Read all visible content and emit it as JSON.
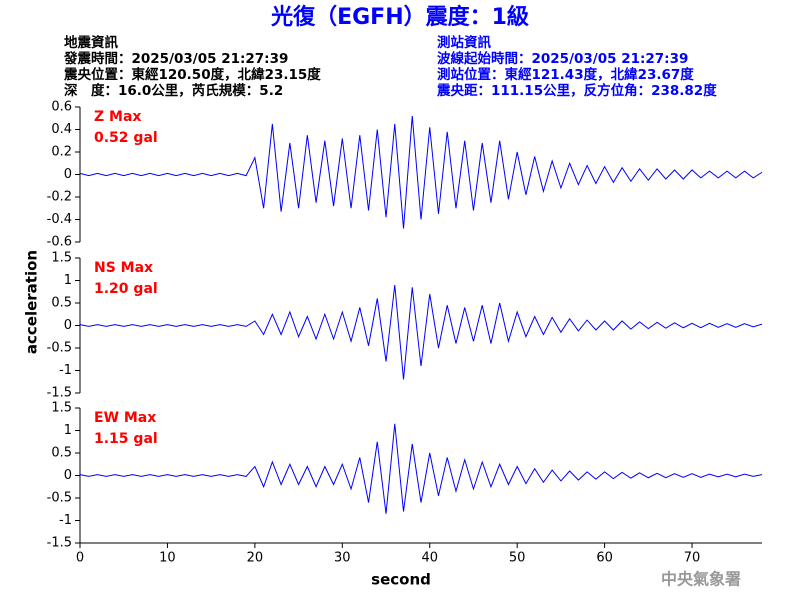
{
  "title": "光復（EGFH）震度：1級",
  "left_info": [
    "地震資訊",
    "發震時間：2025/03/05 21:27:39",
    "震央位置：東經120.50度，北緯23.15度",
    "深　度：16.0公里，芮氏規模：5.2"
  ],
  "right_info": [
    "測站資訊",
    "波線起始時間：2025/03/05 21:27:39",
    "測站位置：東經121.43度，北緯23.67度",
    "震央距：111.15公里，反方位角：238.82度"
  ],
  "y_label": "acceleration",
  "x_label": "second",
  "footer": "中央氣象署",
  "chart_data": [
    {
      "type": "line",
      "color": "#0000ff",
      "label_color": "#ff0000",
      "annotations": [
        "Z Max",
        "0.52 gal"
      ],
      "xlim": [
        0,
        78
      ],
      "ylim": [
        -0.6,
        0.6
      ],
      "yticks": [
        0.6,
        0.4,
        0.2,
        0,
        -0.2,
        -0.4,
        -0.6
      ],
      "x": [
        0,
        1,
        2,
        3,
        4,
        5,
        6,
        7,
        8,
        9,
        10,
        11,
        12,
        13,
        14,
        15,
        16,
        17,
        18,
        19,
        20,
        21,
        22,
        23,
        24,
        25,
        26,
        27,
        28,
        29,
        30,
        31,
        32,
        33,
        34,
        35,
        36,
        37,
        38,
        39,
        40,
        41,
        42,
        43,
        44,
        45,
        46,
        47,
        48,
        49,
        50,
        51,
        52,
        53,
        54,
        55,
        56,
        57,
        58,
        59,
        60,
        61,
        62,
        63,
        64,
        65,
        66,
        67,
        68,
        69,
        70,
        71,
        72,
        73,
        74,
        75,
        76,
        77,
        78
      ],
      "values": [
        0.01,
        -0.01,
        0.01,
        -0.01,
        0.01,
        -0.01,
        0.01,
        -0.01,
        0.01,
        -0.01,
        0.01,
        -0.01,
        0.01,
        -0.01,
        0.01,
        -0.01,
        0.01,
        -0.01,
        0.01,
        -0.01,
        0.15,
        -0.3,
        0.45,
        -0.33,
        0.28,
        -0.3,
        0.35,
        -0.25,
        0.3,
        -0.28,
        0.32,
        -0.3,
        0.35,
        -0.32,
        0.4,
        -0.38,
        0.45,
        -0.48,
        0.52,
        -0.4,
        0.42,
        -0.35,
        0.38,
        -0.3,
        0.3,
        -0.32,
        0.28,
        -0.25,
        0.3,
        -0.22,
        0.2,
        -0.18,
        0.16,
        -0.15,
        0.12,
        -0.12,
        0.1,
        -0.09,
        0.08,
        -0.08,
        0.07,
        -0.07,
        0.06,
        -0.06,
        0.05,
        -0.05,
        0.05,
        -0.04,
        0.04,
        -0.04,
        0.04,
        -0.03,
        0.03,
        -0.03,
        0.03,
        -0.03,
        0.03,
        -0.03,
        0.02
      ]
    },
    {
      "type": "line",
      "color": "#0000ff",
      "label_color": "#ff0000",
      "annotations": [
        "NS Max",
        "1.20 gal"
      ],
      "xlim": [
        0,
        78
      ],
      "ylim": [
        -1.5,
        1.5
      ],
      "yticks": [
        1.5,
        1,
        0.5,
        0,
        -0.5,
        -1,
        -1.5
      ],
      "x": [
        0,
        1,
        2,
        3,
        4,
        5,
        6,
        7,
        8,
        9,
        10,
        11,
        12,
        13,
        14,
        15,
        16,
        17,
        18,
        19,
        20,
        21,
        22,
        23,
        24,
        25,
        26,
        27,
        28,
        29,
        30,
        31,
        32,
        33,
        34,
        35,
        36,
        37,
        38,
        39,
        40,
        41,
        42,
        43,
        44,
        45,
        46,
        47,
        48,
        49,
        50,
        51,
        52,
        53,
        54,
        55,
        56,
        57,
        58,
        59,
        60,
        61,
        62,
        63,
        64,
        65,
        66,
        67,
        68,
        69,
        70,
        71,
        72,
        73,
        74,
        75,
        76,
        77,
        78
      ],
      "values": [
        0.02,
        -0.02,
        0.02,
        -0.02,
        0.02,
        -0.02,
        0.02,
        -0.02,
        0.02,
        -0.02,
        0.02,
        -0.02,
        0.02,
        -0.02,
        0.02,
        -0.02,
        0.02,
        -0.02,
        0.02,
        -0.02,
        0.1,
        -0.2,
        0.25,
        -0.2,
        0.3,
        -0.25,
        0.2,
        -0.3,
        0.25,
        -0.3,
        0.3,
        -0.35,
        0.4,
        -0.45,
        0.6,
        -0.8,
        0.9,
        -1.2,
        0.85,
        -0.9,
        0.7,
        -0.5,
        0.45,
        -0.4,
        0.4,
        -0.35,
        0.45,
        -0.4,
        0.5,
        -0.35,
        0.3,
        -0.25,
        0.2,
        -0.2,
        0.18,
        -0.15,
        0.15,
        -0.12,
        0.12,
        -0.1,
        0.1,
        -0.1,
        0.1,
        -0.08,
        0.08,
        -0.07,
        0.07,
        -0.06,
        0.06,
        -0.05,
        0.05,
        -0.05,
        0.05,
        -0.04,
        0.04,
        -0.04,
        0.04,
        -0.03,
        0.03
      ]
    },
    {
      "type": "line",
      "color": "#0000ff",
      "label_color": "#ff0000",
      "annotations": [
        "EW Max",
        "1.15 gal"
      ],
      "xlim": [
        0,
        78
      ],
      "ylim": [
        -1.5,
        1.5
      ],
      "yticks": [
        1.5,
        1,
        0.5,
        0,
        -0.5,
        -1,
        -1.5
      ],
      "xticks": [
        0,
        10,
        20,
        30,
        40,
        50,
        60,
        70
      ],
      "x": [
        0,
        1,
        2,
        3,
        4,
        5,
        6,
        7,
        8,
        9,
        10,
        11,
        12,
        13,
        14,
        15,
        16,
        17,
        18,
        19,
        20,
        21,
        22,
        23,
        24,
        25,
        26,
        27,
        28,
        29,
        30,
        31,
        32,
        33,
        34,
        35,
        36,
        37,
        38,
        39,
        40,
        41,
        42,
        43,
        44,
        45,
        46,
        47,
        48,
        49,
        50,
        51,
        52,
        53,
        54,
        55,
        56,
        57,
        58,
        59,
        60,
        61,
        62,
        63,
        64,
        65,
        66,
        67,
        68,
        69,
        70,
        71,
        72,
        73,
        74,
        75,
        76,
        77,
        78
      ],
      "values": [
        0.02,
        -0.02,
        0.02,
        -0.02,
        0.02,
        -0.02,
        0.02,
        -0.02,
        0.02,
        -0.02,
        0.02,
        -0.02,
        0.02,
        -0.02,
        0.02,
        -0.02,
        0.02,
        -0.02,
        0.02,
        -0.02,
        0.2,
        -0.25,
        0.3,
        -0.2,
        0.25,
        -0.2,
        0.2,
        -0.25,
        0.2,
        -0.2,
        0.25,
        -0.3,
        0.4,
        -0.6,
        0.75,
        -0.85,
        1.15,
        -0.8,
        0.7,
        -0.6,
        0.5,
        -0.45,
        0.4,
        -0.35,
        0.35,
        -0.3,
        0.3,
        -0.25,
        0.25,
        -0.2,
        0.2,
        -0.18,
        0.15,
        -0.15,
        0.12,
        -0.12,
        0.1,
        -0.1,
        0.08,
        -0.08,
        0.08,
        -0.07,
        0.07,
        -0.06,
        0.06,
        -0.05,
        0.05,
        -0.05,
        0.04,
        -0.04,
        0.04,
        -0.04,
        0.03,
        -0.03,
        0.03,
        -0.03,
        0.03,
        -0.02,
        0.02
      ]
    }
  ]
}
